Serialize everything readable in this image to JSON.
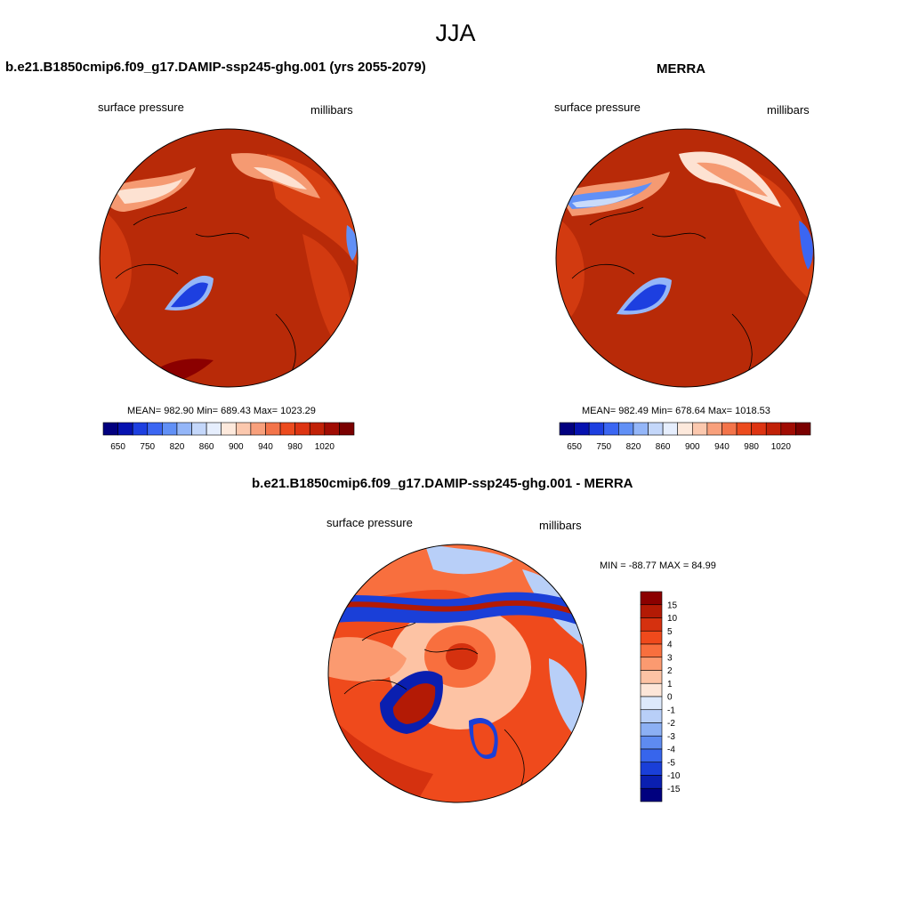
{
  "page": {
    "title": "JJA"
  },
  "panels": [
    {
      "title": "b.e21.B1850cmip6.f09_g17.DAMIP-ssp245-ghg.001 (yrs 2055-2079)",
      "left_label": "surface pressure",
      "right_label": "millibars",
      "stats": "MEAN= 982.90  Min= 689.43  Max= 1023.29",
      "colorbar": {
        "colors": [
          "#02007f",
          "#0612b0",
          "#1d3fe0",
          "#3b66f2",
          "#6190f6",
          "#94b6f8",
          "#c4d7fa",
          "#e6eefd",
          "#fde9dc",
          "#fbc8ae",
          "#f8a07c",
          "#f3744a",
          "#ec4b1e",
          "#dd3412",
          "#c12107",
          "#a00c03",
          "#7a0000"
        ],
        "tick_labels": [
          "650",
          "750",
          "820",
          "860",
          "900",
          "940",
          "980",
          "1020"
        ]
      }
    },
    {
      "title": "MERRA",
      "left_label": "surface pressure",
      "right_label": "millibars",
      "stats": "MEAN= 982.49  Min= 678.64  Max= 1018.53",
      "colorbar": {
        "colors": [
          "#02007f",
          "#0612b0",
          "#1d3fe0",
          "#3b66f2",
          "#6190f6",
          "#94b6f8",
          "#c4d7fa",
          "#e6eefd",
          "#fde9dc",
          "#fbc8ae",
          "#f8a07c",
          "#f3744a",
          "#ec4b1e",
          "#dd3412",
          "#c12107",
          "#a00c03",
          "#7a0000"
        ],
        "tick_labels": [
          "650",
          "750",
          "820",
          "860",
          "900",
          "940",
          "980",
          "1020"
        ]
      }
    },
    {
      "title": "b.e21.B1850cmip6.f09_g17.DAMIP-ssp245-ghg.001 - MERRA",
      "left_label": "surface pressure",
      "right_label": "millibars",
      "stats": "MIN = -88.77 MAX =  84.99",
      "colorbar": {
        "colors": [
          "#8b0000",
          "#b31a05",
          "#d5310f",
          "#ef4a1c",
          "#f86f3e",
          "#fb9a70",
          "#fdc3a4",
          "#fde6d8",
          "#dde9fb",
          "#b8cff8",
          "#8cb0f4",
          "#5e8bf0",
          "#3765ec",
          "#1a3fd8",
          "#0a1fb0",
          "#00007f"
        ],
        "tick_labels": [
          "15",
          "10",
          "5",
          "4",
          "3",
          "2",
          "1",
          "0",
          "-1",
          "-2",
          "-3",
          "-4",
          "-5",
          "-10",
          "-15"
        ]
      }
    }
  ],
  "map_colors": {
    "base_red": "#b82a08",
    "mid_red": "#d23a10",
    "orange": "#ec5a28",
    "light_orange": "#f59a72",
    "pale": "#fde2d2",
    "pale_blue": "#c9dbfa",
    "blue": "#3f6ef0",
    "dark_blue": "#0a1aa8",
    "dark_red": "#8b0000"
  }
}
